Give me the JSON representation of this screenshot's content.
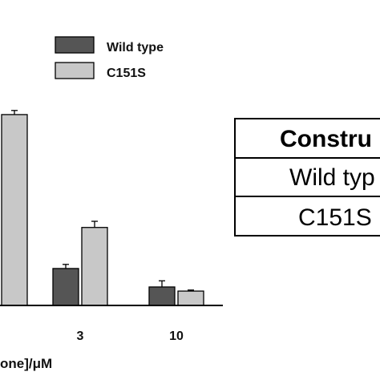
{
  "chart_data": {
    "type": "bar",
    "categories": [
      "",
      "3",
      "10"
    ],
    "series": [
      {
        "name": "Wild type",
        "color": "#555555",
        "values": [
          null,
          18,
          9
        ],
        "errors": [
          null,
          2,
          3
        ]
      },
      {
        "name": "C151S",
        "color": "#c8c8c8",
        "values": [
          93,
          38,
          7
        ],
        "errors": [
          2,
          3,
          0.5
        ]
      }
    ],
    "xlabel": "one]/μM",
    "ylabel": "",
    "ylim": [
      0,
      100
    ],
    "legend_position": "top",
    "grid": false
  },
  "table": {
    "header": "Constru",
    "rows": [
      "Wild typ",
      "C151S"
    ]
  }
}
